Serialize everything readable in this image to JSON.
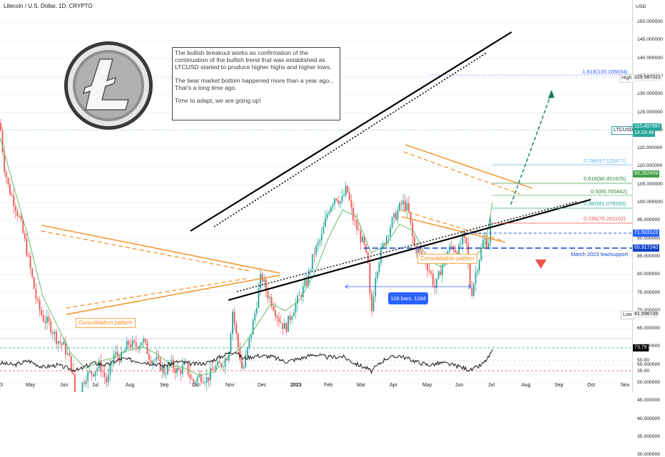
{
  "chart_title": "Litecoin / U.S. Dollar, 1D, CRYPTO",
  "currency": "USD",
  "annotation": {
    "p1": "The bullish breakout works as confirmation of the continuation of the bullish trend that was established as LTCUSD started to produce higher highs and higher lows.",
    "p2": "The bear market bottom happened more than a year ago... That's a long time ago.",
    "p3": "Time to adapt, we are going up!"
  },
  "labels": {
    "consolidation_left": "Consolidation pattern",
    "consolidation_right": "Consolidation pattern",
    "bars_range": "118 bars, 118d",
    "fib_1618": "1.618(130.165034)",
    "fib_0786": "0.786(97.123477)",
    "fib_0618": "0.618(90.451625)",
    "fib_05": "0.5(85.765442)",
    "fib_0382": "0.382(81.079260)",
    "fib_0236": "0.236(75.281102)",
    "support_label": "March 2023 low/support"
  },
  "price_tags": {
    "high_label": "High",
    "high_value": "129.587021",
    "symbol": "LTCUSD",
    "last_price": "110.407997",
    "countdown": "14:24:48",
    "fib_tag": "93.262409",
    "level1": "71.503123",
    "level2": "65.917240",
    "low_label": "Low",
    "low_value": "41.596728",
    "rsi_value": "73.79"
  },
  "colors": {
    "bull": "#26a69a",
    "bear": "#ef5350",
    "ma": "#66bb6a",
    "orange": "#f28c1c",
    "trend": "#000000",
    "fib_blue": "#2962ff",
    "teal_arrow": "#0a7d5e",
    "rsi": "#000000"
  },
  "chart_data": {
    "type": "candlestick",
    "x_ticks": [
      "3",
      "May",
      "Jun",
      "Jul",
      "Aug",
      "Sep",
      "Oct",
      "Nov",
      "Dec",
      "2023",
      "Feb",
      "Mar",
      "Apr",
      "May",
      "Jun",
      "Jul",
      "Aug",
      "Sep",
      "Oct",
      "Nov"
    ],
    "y_ticks": [
      "150.000000",
      "145.000000",
      "140.000000",
      "135.000000",
      "130.000000",
      "125.000000",
      "120.000000",
      "115.000000",
      "110.000000",
      "105.000000",
      "100.000000",
      "95.000000",
      "90.000000",
      "85.000000",
      "80.000000",
      "75.000000",
      "70.000000",
      "65.000000",
      "60.000000",
      "55.000000",
      "50.000000",
      "45.000000",
      "40.000000",
      "35.000000",
      "30.000000"
    ],
    "ylim": [
      28,
      154
    ],
    "rsi_ticks": [
      "75.00",
      "50.00",
      "25.00"
    ],
    "price_path": [
      [
        0,
        122
      ],
      [
        6,
        110
      ],
      [
        12,
        104
      ],
      [
        20,
        100
      ],
      [
        28,
        95
      ],
      [
        36,
        88
      ],
      [
        44,
        80
      ],
      [
        52,
        72
      ],
      [
        60,
        68
      ],
      [
        70,
        66
      ],
      [
        80,
        62
      ],
      [
        90,
        60
      ],
      [
        100,
        55
      ],
      [
        106,
        46
      ],
      [
        112,
        48
      ],
      [
        120,
        52
      ],
      [
        130,
        53
      ],
      [
        140,
        55
      ],
      [
        150,
        50
      ],
      [
        160,
        58
      ],
      [
        170,
        57
      ],
      [
        180,
        61
      ],
      [
        190,
        60
      ],
      [
        200,
        62
      ],
      [
        210,
        57
      ],
      [
        220,
        56
      ],
      [
        230,
        53
      ],
      [
        240,
        55
      ],
      [
        250,
        53
      ],
      [
        260,
        55
      ],
      [
        270,
        50
      ],
      [
        280,
        52
      ],
      [
        290,
        51
      ],
      [
        300,
        54
      ],
      [
        310,
        55
      ],
      [
        320,
        58
      ],
      [
        326,
        70
      ],
      [
        332,
        62
      ],
      [
        340,
        53
      ],
      [
        350,
        62
      ],
      [
        358,
        70
      ],
      [
        366,
        80
      ],
      [
        374,
        75
      ],
      [
        382,
        72
      ],
      [
        390,
        68
      ],
      [
        400,
        65
      ],
      [
        410,
        70
      ],
      [
        420,
        74
      ],
      [
        430,
        78
      ],
      [
        440,
        86
      ],
      [
        450,
        90
      ],
      [
        460,
        98
      ],
      [
        470,
        102
      ],
      [
        478,
        100
      ],
      [
        486,
        104
      ],
      [
        494,
        96
      ],
      [
        502,
        92
      ],
      [
        510,
        88
      ],
      [
        516,
        82
      ],
      [
        520,
        68
      ],
      [
        526,
        80
      ],
      [
        532,
        85
      ],
      [
        540,
        90
      ],
      [
        548,
        94
      ],
      [
        556,
        97
      ],
      [
        564,
        100
      ],
      [
        572,
        98
      ],
      [
        580,
        88
      ],
      [
        588,
        86
      ],
      [
        596,
        84
      ],
      [
        604,
        80
      ],
      [
        610,
        76
      ],
      [
        618,
        82
      ],
      [
        626,
        86
      ],
      [
        634,
        88
      ],
      [
        642,
        86
      ],
      [
        648,
        90
      ],
      [
        654,
        88
      ],
      [
        660,
        74
      ],
      [
        666,
        80
      ],
      [
        672,
        85
      ],
      [
        678,
        90
      ],
      [
        684,
        88
      ],
      [
        688,
        96
      ],
      [
        690,
        111
      ]
    ],
    "ma_path": [
      [
        0,
        118
      ],
      [
        20,
        104
      ],
      [
        40,
        90
      ],
      [
        60,
        74
      ],
      [
        80,
        66
      ],
      [
        100,
        58
      ],
      [
        120,
        54
      ],
      [
        140,
        56
      ],
      [
        160,
        57
      ],
      [
        180,
        59
      ],
      [
        200,
        60
      ],
      [
        220,
        58
      ],
      [
        240,
        55
      ],
      [
        260,
        54
      ],
      [
        280,
        52
      ],
      [
        300,
        53
      ],
      [
        320,
        57
      ],
      [
        340,
        60
      ],
      [
        360,
        66
      ],
      [
        380,
        72
      ],
      [
        400,
        70
      ],
      [
        420,
        73
      ],
      [
        440,
        80
      ],
      [
        460,
        90
      ],
      [
        480,
        98
      ],
      [
        500,
        96
      ],
      [
        520,
        86
      ],
      [
        540,
        88
      ],
      [
        560,
        94
      ],
      [
        580,
        92
      ],
      [
        600,
        84
      ],
      [
        620,
        82
      ],
      [
        640,
        85
      ],
      [
        660,
        84
      ],
      [
        680,
        88
      ],
      [
        690,
        100
      ]
    ],
    "rsi_path": [
      [
        0,
        45
      ],
      [
        20,
        40
      ],
      [
        40,
        50
      ],
      [
        60,
        35
      ],
      [
        80,
        40
      ],
      [
        100,
        30
      ],
      [
        110,
        28
      ],
      [
        130,
        45
      ],
      [
        150,
        40
      ],
      [
        170,
        55
      ],
      [
        190,
        50
      ],
      [
        210,
        45
      ],
      [
        230,
        38
      ],
      [
        250,
        48
      ],
      [
        270,
        42
      ],
      [
        290,
        45
      ],
      [
        310,
        60
      ],
      [
        320,
        68
      ],
      [
        330,
        72
      ],
      [
        340,
        55
      ],
      [
        360,
        62
      ],
      [
        380,
        60
      ],
      [
        400,
        48
      ],
      [
        420,
        55
      ],
      [
        440,
        65
      ],
      [
        460,
        58
      ],
      [
        480,
        60
      ],
      [
        500,
        42
      ],
      [
        515,
        32
      ],
      [
        520,
        25
      ],
      [
        540,
        55
      ],
      [
        560,
        62
      ],
      [
        580,
        50
      ],
      [
        600,
        40
      ],
      [
        620,
        45
      ],
      [
        640,
        38
      ],
      [
        660,
        28
      ],
      [
        675,
        40
      ],
      [
        685,
        58
      ],
      [
        690,
        73.79
      ]
    ]
  }
}
